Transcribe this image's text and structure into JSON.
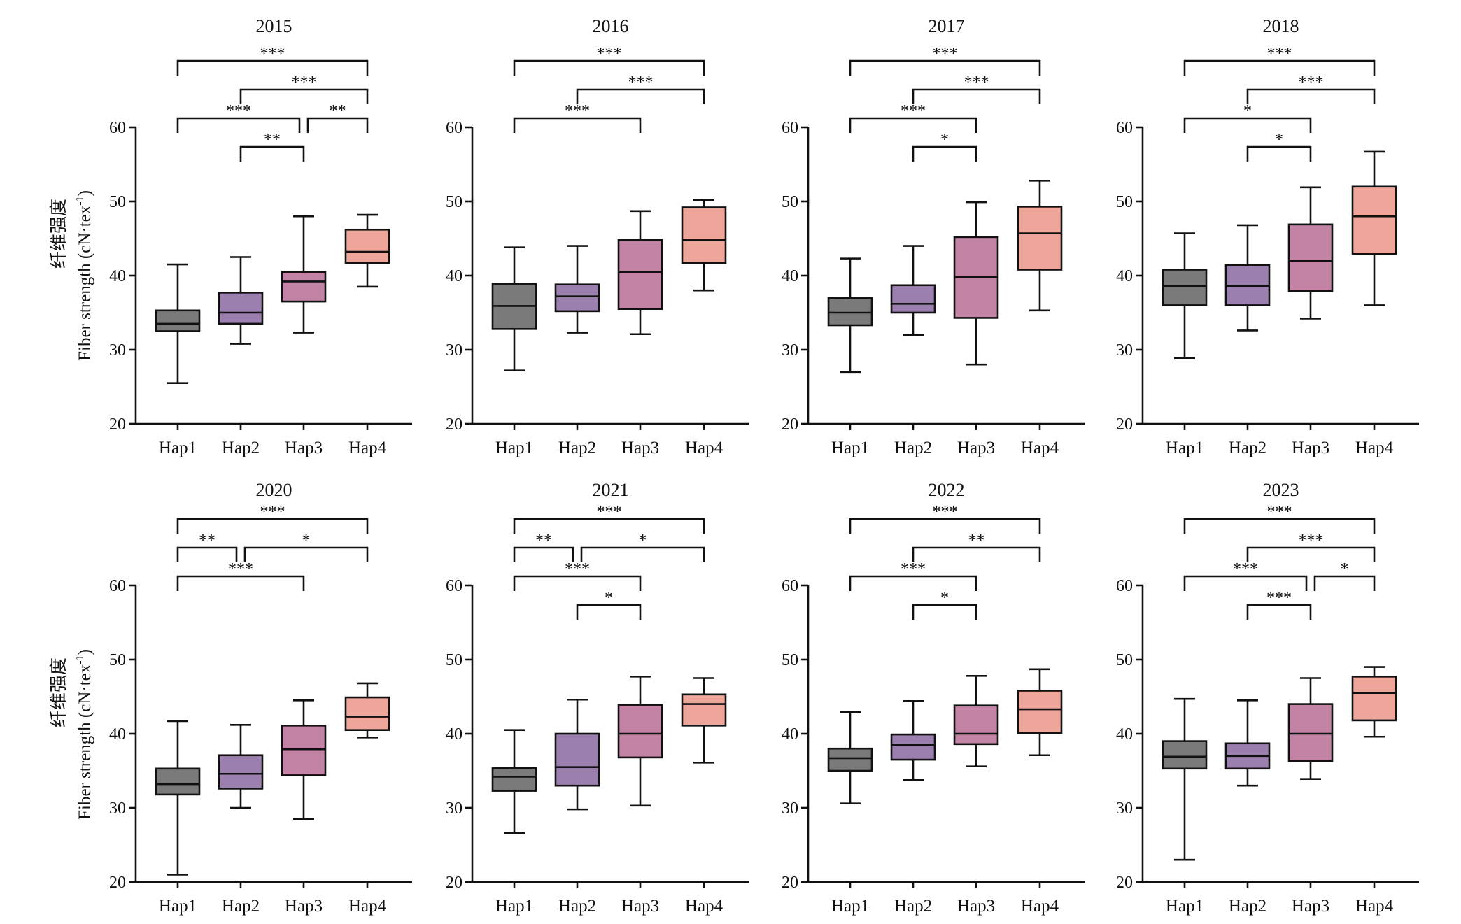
{
  "figure": {
    "ylabel_cn": "纤维强度",
    "ylabel_en": "Fiber strength (cN·tex",
    "ylabel_sup": "-1",
    "ylabel_close": ")"
  },
  "colors": {
    "Hap1": "#7a7a7a",
    "Hap2": "#9b7fae",
    "Hap3": "#c283a4",
    "Hap4": "#eea59a"
  },
  "chart_data": [
    {
      "type": "box",
      "title": "2015",
      "categories": [
        "Hap1",
        "Hap2",
        "Hap3",
        "Hap4"
      ],
      "yticks": [
        20,
        30,
        40,
        50,
        60
      ],
      "ylim": [
        20,
        60
      ],
      "boxes": [
        {
          "whislo": 25.5,
          "q1": 32.5,
          "med": 33.5,
          "q3": 35.3,
          "whishi": 41.5
        },
        {
          "whislo": 30.8,
          "q1": 33.5,
          "med": 35.0,
          "q3": 37.7,
          "whishi": 42.5
        },
        {
          "whislo": 32.3,
          "q1": 36.5,
          "med": 39.2,
          "q3": 40.5,
          "whishi": 48.0
        },
        {
          "whislo": 38.5,
          "q1": 41.7,
          "med": 43.2,
          "q3": 46.2,
          "whishi": 48.2
        }
      ],
      "comparisons": [
        {
          "pair": [
            "Hap1",
            "Hap4"
          ],
          "label": "***"
        },
        {
          "pair": [
            "Hap2",
            "Hap4"
          ],
          "label": "***"
        },
        {
          "pair": [
            "Hap1",
            "Hap3"
          ],
          "label": "***"
        },
        {
          "pair": [
            "Hap2",
            "Hap3"
          ],
          "label": "**"
        },
        {
          "pair": [
            "Hap3",
            "Hap4"
          ],
          "label": "**"
        }
      ]
    },
    {
      "type": "box",
      "title": "2016",
      "categories": [
        "Hap1",
        "Hap2",
        "Hap3",
        "Hap4"
      ],
      "yticks": [
        20,
        30,
        40,
        50,
        60
      ],
      "ylim": [
        20,
        60
      ],
      "boxes": [
        {
          "whislo": 27.2,
          "q1": 32.8,
          "med": 35.9,
          "q3": 38.9,
          "whishi": 43.8
        },
        {
          "whislo": 32.3,
          "q1": 35.2,
          "med": 37.2,
          "q3": 38.8,
          "whishi": 44.0
        },
        {
          "whislo": 32.1,
          "q1": 35.5,
          "med": 40.5,
          "q3": 44.8,
          "whishi": 48.7
        },
        {
          "whislo": 38.0,
          "q1": 41.7,
          "med": 44.8,
          "q3": 49.2,
          "whishi": 50.2
        }
      ],
      "comparisons": [
        {
          "pair": [
            "Hap1",
            "Hap4"
          ],
          "label": "***"
        },
        {
          "pair": [
            "Hap2",
            "Hap4"
          ],
          "label": "***"
        },
        {
          "pair": [
            "Hap1",
            "Hap3"
          ],
          "label": "***"
        }
      ]
    },
    {
      "type": "box",
      "title": "2017",
      "categories": [
        "Hap1",
        "Hap2",
        "Hap3",
        "Hap4"
      ],
      "yticks": [
        20,
        30,
        40,
        50,
        60
      ],
      "ylim": [
        20,
        60
      ],
      "boxes": [
        {
          "whislo": 27.0,
          "q1": 33.3,
          "med": 35.0,
          "q3": 37.0,
          "whishi": 42.3
        },
        {
          "whislo": 32.0,
          "q1": 35.0,
          "med": 36.2,
          "q3": 38.7,
          "whishi": 44.0
        },
        {
          "whislo": 28.0,
          "q1": 34.3,
          "med": 39.8,
          "q3": 45.2,
          "whishi": 49.9
        },
        {
          "whislo": 35.3,
          "q1": 40.8,
          "med": 45.7,
          "q3": 49.3,
          "whishi": 52.8
        }
      ],
      "comparisons": [
        {
          "pair": [
            "Hap1",
            "Hap4"
          ],
          "label": "***"
        },
        {
          "pair": [
            "Hap2",
            "Hap4"
          ],
          "label": "***"
        },
        {
          "pair": [
            "Hap1",
            "Hap3"
          ],
          "label": "***"
        },
        {
          "pair": [
            "Hap2",
            "Hap3"
          ],
          "label": "*"
        }
      ]
    },
    {
      "type": "box",
      "title": "2018",
      "categories": [
        "Hap1",
        "Hap2",
        "Hap3",
        "Hap4"
      ],
      "yticks": [
        20,
        30,
        40,
        50,
        60
      ],
      "ylim": [
        20,
        60
      ],
      "boxes": [
        {
          "whislo": 28.9,
          "q1": 36.0,
          "med": 38.6,
          "q3": 40.8,
          "whishi": 45.7
        },
        {
          "whislo": 32.6,
          "q1": 36.0,
          "med": 38.6,
          "q3": 41.4,
          "whishi": 46.8
        },
        {
          "whislo": 34.2,
          "q1": 37.9,
          "med": 42.0,
          "q3": 46.9,
          "whishi": 51.9
        },
        {
          "whislo": 36.0,
          "q1": 42.9,
          "med": 48.0,
          "q3": 52.0,
          "whishi": 56.7
        }
      ],
      "comparisons": [
        {
          "pair": [
            "Hap1",
            "Hap4"
          ],
          "label": "***"
        },
        {
          "pair": [
            "Hap2",
            "Hap4"
          ],
          "label": "***"
        },
        {
          "pair": [
            "Hap1",
            "Hap3"
          ],
          "label": "*"
        },
        {
          "pair": [
            "Hap2",
            "Hap3"
          ],
          "label": "*"
        }
      ]
    },
    {
      "type": "box",
      "title": "2020",
      "categories": [
        "Hap1",
        "Hap2",
        "Hap3",
        "Hap4"
      ],
      "yticks": [
        20,
        30,
        40,
        50,
        60
      ],
      "ylim": [
        20,
        60
      ],
      "boxes": [
        {
          "whislo": 21.0,
          "q1": 31.8,
          "med": 33.2,
          "q3": 35.3,
          "whishi": 41.7
        },
        {
          "whislo": 30.0,
          "q1": 32.6,
          "med": 34.6,
          "q3": 37.1,
          "whishi": 41.2
        },
        {
          "whislo": 28.5,
          "q1": 34.4,
          "med": 37.9,
          "q3": 41.1,
          "whishi": 44.5
        },
        {
          "whislo": 39.5,
          "q1": 40.5,
          "med": 42.3,
          "q3": 44.9,
          "whishi": 46.8
        }
      ],
      "comparisons": [
        {
          "pair": [
            "Hap1",
            "Hap4"
          ],
          "label": "***"
        },
        {
          "pair": [
            "Hap1",
            "Hap3"
          ],
          "label": "***"
        },
        {
          "pair": [
            "Hap2",
            "Hap4"
          ],
          "label": "*"
        },
        {
          "pair": [
            "Hap1",
            "Hap2"
          ],
          "label": "**"
        }
      ]
    },
    {
      "type": "box",
      "title": "2021",
      "categories": [
        "Hap1",
        "Hap2",
        "Hap3",
        "Hap4"
      ],
      "yticks": [
        20,
        30,
        40,
        50,
        60
      ],
      "ylim": [
        20,
        60
      ],
      "boxes": [
        {
          "whislo": 26.6,
          "q1": 32.3,
          "med": 34.2,
          "q3": 35.4,
          "whishi": 40.5
        },
        {
          "whislo": 29.8,
          "q1": 33.0,
          "med": 35.5,
          "q3": 40.0,
          "whishi": 44.6
        },
        {
          "whislo": 30.3,
          "q1": 36.8,
          "med": 40.0,
          "q3": 43.9,
          "whishi": 47.7
        },
        {
          "whislo": 36.1,
          "q1": 41.1,
          "med": 44.0,
          "q3": 45.3,
          "whishi": 47.5
        }
      ],
      "comparisons": [
        {
          "pair": [
            "Hap1",
            "Hap4"
          ],
          "label": "***"
        },
        {
          "pair": [
            "Hap2",
            "Hap4"
          ],
          "label": "*"
        },
        {
          "pair": [
            "Hap1",
            "Hap3"
          ],
          "label": "***"
        },
        {
          "pair": [
            "Hap1",
            "Hap2"
          ],
          "label": "**"
        },
        {
          "pair": [
            "Hap2",
            "Hap3"
          ],
          "label": "*"
        }
      ]
    },
    {
      "type": "box",
      "title": "2022",
      "categories": [
        "Hap1",
        "Hap2",
        "Hap3",
        "Hap4"
      ],
      "yticks": [
        20,
        30,
        40,
        50,
        60
      ],
      "ylim": [
        20,
        60
      ],
      "boxes": [
        {
          "whislo": 30.6,
          "q1": 35.0,
          "med": 36.7,
          "q3": 38.0,
          "whishi": 42.9
        },
        {
          "whislo": 33.8,
          "q1": 36.5,
          "med": 38.5,
          "q3": 39.9,
          "whishi": 44.4
        },
        {
          "whislo": 35.6,
          "q1": 38.6,
          "med": 40.0,
          "q3": 43.8,
          "whishi": 47.8
        },
        {
          "whislo": 37.1,
          "q1": 40.1,
          "med": 43.3,
          "q3": 45.8,
          "whishi": 48.7
        }
      ],
      "comparisons": [
        {
          "pair": [
            "Hap1",
            "Hap4"
          ],
          "label": "***"
        },
        {
          "pair": [
            "Hap2",
            "Hap4"
          ],
          "label": "**"
        },
        {
          "pair": [
            "Hap1",
            "Hap3"
          ],
          "label": "***"
        },
        {
          "pair": [
            "Hap2",
            "Hap3"
          ],
          "label": "*"
        }
      ]
    },
    {
      "type": "box",
      "title": "2023",
      "categories": [
        "Hap1",
        "Hap2",
        "Hap3",
        "Hap4"
      ],
      "yticks": [
        20,
        30,
        40,
        50,
        60
      ],
      "ylim": [
        20,
        60
      ],
      "boxes": [
        {
          "whislo": 23.0,
          "q1": 35.3,
          "med": 36.9,
          "q3": 39.0,
          "whishi": 44.7
        },
        {
          "whislo": 33.0,
          "q1": 35.3,
          "med": 37.0,
          "q3": 38.7,
          "whishi": 44.5
        },
        {
          "whislo": 33.9,
          "q1": 36.3,
          "med": 40.0,
          "q3": 44.0,
          "whishi": 47.5
        },
        {
          "whislo": 39.6,
          "q1": 41.8,
          "med": 45.5,
          "q3": 47.7,
          "whishi": 49.0
        }
      ],
      "comparisons": [
        {
          "pair": [
            "Hap1",
            "Hap4"
          ],
          "label": "***"
        },
        {
          "pair": [
            "Hap2",
            "Hap4"
          ],
          "label": "***"
        },
        {
          "pair": [
            "Hap1",
            "Hap3"
          ],
          "label": "***"
        },
        {
          "pair": [
            "Hap2",
            "Hap3"
          ],
          "label": "***"
        },
        {
          "pair": [
            "Hap3",
            "Hap4"
          ],
          "label": "*"
        }
      ]
    }
  ]
}
